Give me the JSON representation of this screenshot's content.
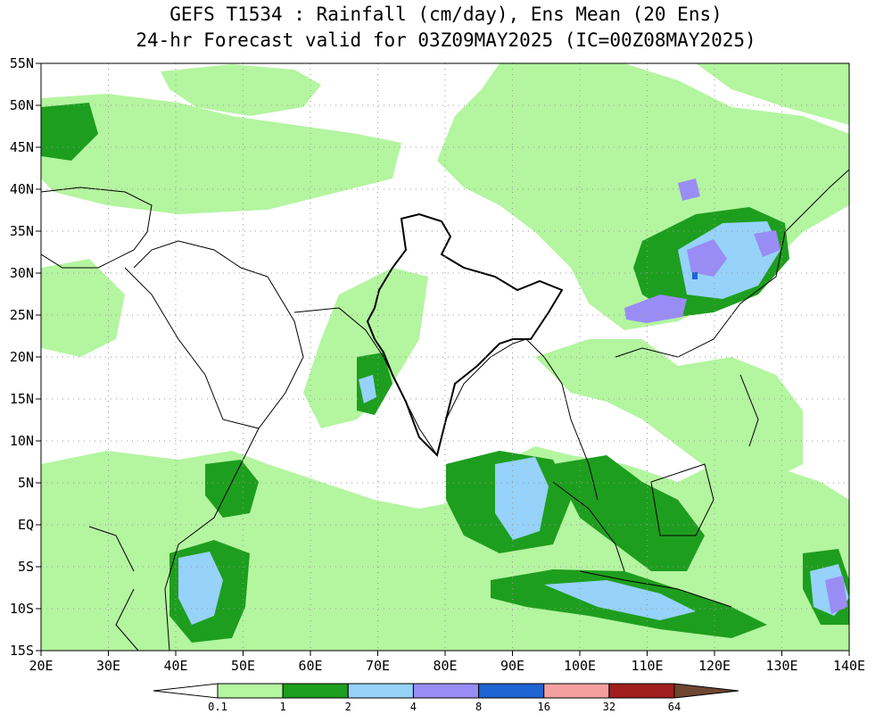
{
  "title": {
    "line1": "GEFS T1534 : Rainfall (cm/day), Ens Mean (20 Ens)",
    "line2": "24-hr Forecast valid for 03Z09MAY2025 (IC=00Z08MAY2025)"
  },
  "map": {
    "lon_range": [
      20,
      140
    ],
    "lat_range": [
      -15,
      55
    ],
    "lon_ticks": [
      {
        "value": 20,
        "label": "20E"
      },
      {
        "value": 30,
        "label": "30E"
      },
      {
        "value": 40,
        "label": "40E"
      },
      {
        "value": 50,
        "label": "50E"
      },
      {
        "value": 60,
        "label": "60E"
      },
      {
        "value": 70,
        "label": "70E"
      },
      {
        "value": 80,
        "label": "80E"
      },
      {
        "value": 90,
        "label": "90E"
      },
      {
        "value": 100,
        "label": "100E"
      },
      {
        "value": 110,
        "label": "110E"
      },
      {
        "value": 120,
        "label": "120E"
      },
      {
        "value": 130,
        "label": "130E"
      },
      {
        "value": 140,
        "label": "140E"
      }
    ],
    "lat_ticks": [
      {
        "value": 55,
        "label": "55N"
      },
      {
        "value": 50,
        "label": "50N"
      },
      {
        "value": 45,
        "label": "45N"
      },
      {
        "value": 40,
        "label": "40N"
      },
      {
        "value": 35,
        "label": "35N"
      },
      {
        "value": 30,
        "label": "30N"
      },
      {
        "value": 25,
        "label": "25N"
      },
      {
        "value": 20,
        "label": "20N"
      },
      {
        "value": 15,
        "label": "15N"
      },
      {
        "value": 10,
        "label": "10N"
      },
      {
        "value": 5,
        "label": "5N"
      },
      {
        "value": 0,
        "label": "EQ"
      },
      {
        "value": -5,
        "label": "5S"
      },
      {
        "value": -10,
        "label": "10S"
      },
      {
        "value": -15,
        "label": "15S"
      }
    ],
    "grid": true,
    "background_color": "#ffffff"
  },
  "colorbar": {
    "bins": [
      {
        "color": "#ffffff"
      },
      {
        "color": "#b4f5a0"
      },
      {
        "color": "#1e9e1e"
      },
      {
        "color": "#96d2fa"
      },
      {
        "color": "#9a8cf5"
      },
      {
        "color": "#1e64d2"
      },
      {
        "color": "#f5a0a0"
      },
      {
        "color": "#a01e1e"
      },
      {
        "color": "#6e4632"
      }
    ],
    "labels": [
      "0.1",
      "1",
      "2",
      "4",
      "8",
      "16",
      "32",
      "64"
    ]
  }
}
